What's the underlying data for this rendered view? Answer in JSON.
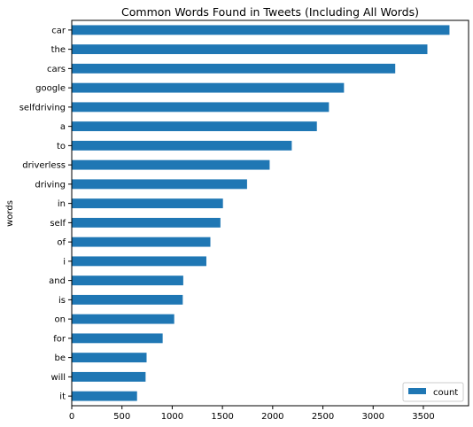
{
  "chart_data": {
    "type": "bar",
    "orientation": "horizontal",
    "title": "Common Words Found in Tweets (Including All Words)",
    "xlabel": "",
    "ylabel": "words",
    "xlim": [
      0,
      3950
    ],
    "xticks": [
      0,
      500,
      1000,
      1500,
      2000,
      2500,
      3000,
      3500
    ],
    "grid": false,
    "legend_position": "lower-right",
    "categories": [
      "car",
      "the",
      "cars",
      "google",
      "selfdriving",
      "a",
      "to",
      "driverless",
      "driving",
      "in",
      "self",
      "of",
      "i",
      "and",
      "is",
      "on",
      "for",
      "be",
      "will",
      "it"
    ],
    "series": [
      {
        "name": "count",
        "color": "#1f77b4",
        "values": [
          3760,
          3540,
          3220,
          2710,
          2560,
          2440,
          2190,
          1970,
          1745,
          1505,
          1480,
          1380,
          1340,
          1110,
          1105,
          1020,
          905,
          745,
          735,
          650
        ]
      }
    ]
  }
}
